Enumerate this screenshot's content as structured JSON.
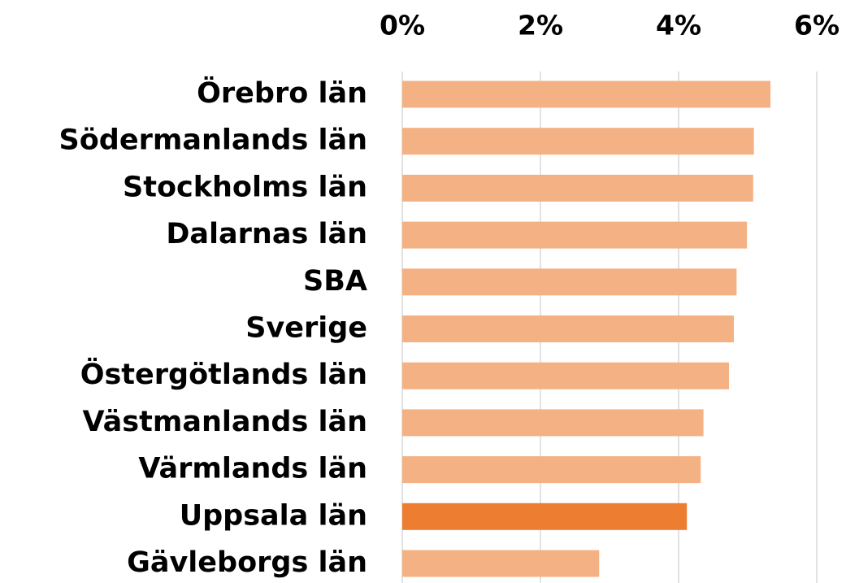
{
  "chart_data": {
    "type": "barh",
    "categories": [
      "Örebro län",
      "Södermanlands län",
      "Stockholms län",
      "Dalarnas län",
      "SBA",
      "Sverige",
      "Östergötlands län",
      "Västmanlands län",
      "Värmlands län",
      "Uppsala län",
      "Gävleborgs län"
    ],
    "values": [
      5.33,
      5.09,
      5.08,
      4.99,
      4.84,
      4.8,
      4.73,
      4.36,
      4.32,
      4.12,
      2.85
    ],
    "colors": [
      "#f4b183",
      "#f4b183",
      "#f4b183",
      "#f4b183",
      "#f4b183",
      "#f4b183",
      "#f4b183",
      "#f4b183",
      "#f4b183",
      "#ed7d31",
      "#f4b183"
    ],
    "xlim": [
      0,
      6
    ],
    "xticks": [
      {
        "value": 0,
        "label": "0%"
      },
      {
        "value": 2,
        "label": "2%"
      },
      {
        "value": 4,
        "label": "4%"
      },
      {
        "value": 6,
        "label": "6%"
      }
    ],
    "grid": true
  }
}
